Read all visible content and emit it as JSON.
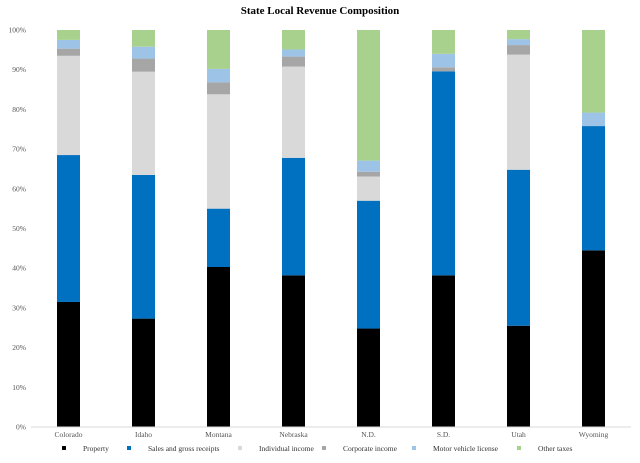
{
  "chart_data": {
    "type": "bar",
    "stacked": true,
    "title": "State Local Revenue Composition",
    "xlabel": "",
    "ylabel": "",
    "ylim": [
      0,
      100
    ],
    "y_tick_values": [
      0,
      10,
      20,
      30,
      40,
      50,
      60,
      70,
      80,
      90,
      100
    ],
    "y_tick_labels": [
      "0%",
      "10%",
      "20%",
      "30%",
      "40%",
      "50%",
      "60%",
      "70%",
      "80%",
      "90%",
      "100%"
    ],
    "grid": false,
    "legend_position": "bottom",
    "categories": [
      "Colorado",
      "Idaho",
      "Montana",
      "Nebraska",
      "N.D.",
      "S.D.",
      "Utah",
      "Wyoming"
    ],
    "series": [
      {
        "name": "Property",
        "color": "#000000",
        "values": [
          31.5,
          27.3,
          40.3,
          38.2,
          24.8,
          38.2,
          25.5,
          44.5
        ]
      },
      {
        "name": "Sales and gross receipts",
        "color": "#0070c0",
        "values": [
          37.0,
          36.2,
          14.7,
          29.6,
          32.2,
          51.4,
          39.3,
          31.3
        ]
      },
      {
        "name": "Individual income",
        "color": "#d9d9d9",
        "values": [
          25.0,
          26.0,
          28.8,
          23.0,
          6.1,
          0.0,
          29.0,
          0.0
        ]
      },
      {
        "name": "Corporate income",
        "color": "#a6a6a6",
        "values": [
          1.8,
          3.3,
          3.0,
          2.5,
          1.2,
          1.0,
          2.4,
          0.0
        ]
      },
      {
        "name": "Motor vehicle license",
        "color": "#9dc3e6",
        "values": [
          2.2,
          3.0,
          3.4,
          1.8,
          2.8,
          3.4,
          1.5,
          3.4
        ]
      },
      {
        "name": "Other taxes",
        "color": "#a9d18e",
        "values": [
          2.5,
          4.2,
          9.8,
          4.9,
          32.9,
          6.0,
          2.3,
          20.8
        ]
      }
    ]
  }
}
